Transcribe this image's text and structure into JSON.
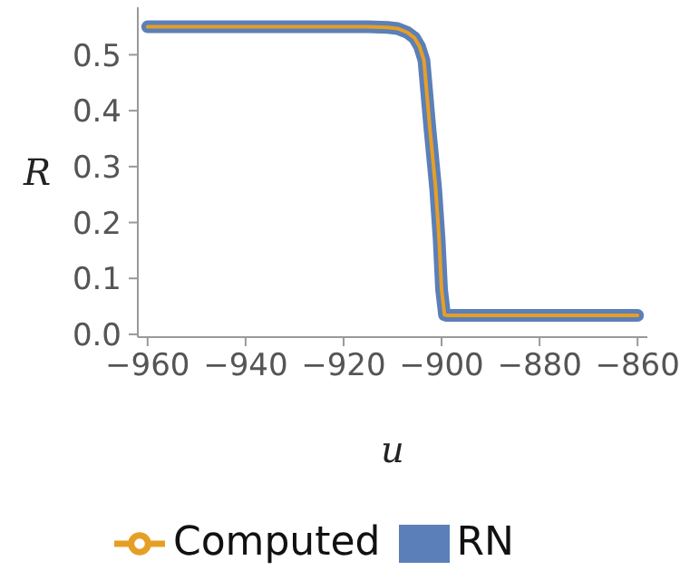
{
  "chart_data": {
    "type": "line",
    "xlabel": "u",
    "ylabel": "R",
    "x": [
      -960,
      -930,
      -915,
      -911,
      -909,
      -907,
      -905.5,
      -904.5,
      -903.6,
      -902.4,
      -901.2,
      -900.5,
      -900,
      -899.4,
      -899,
      -880,
      -860
    ],
    "series": [
      {
        "name": "RN",
        "color": "#5b7fb8",
        "values": [
          0.55,
          0.55,
          0.55,
          0.549,
          0.547,
          0.54,
          0.53,
          0.515,
          0.49,
          0.37,
          0.26,
          0.17,
          0.08,
          0.035,
          0.034,
          0.034,
          0.034
        ]
      },
      {
        "name": "Computed",
        "color": "#e69f25",
        "values": [
          0.55,
          0.55,
          0.55,
          0.549,
          0.547,
          0.54,
          0.53,
          0.515,
          0.49,
          0.37,
          0.26,
          0.17,
          0.08,
          0.035,
          0.034,
          0.034,
          0.034
        ]
      }
    ],
    "xlim": [
      -962,
      -858
    ],
    "ylim": [
      -0.005,
      0.585
    ],
    "xticks": [
      {
        "value": -960,
        "label": "−960"
      },
      {
        "value": -940,
        "label": "−940"
      },
      {
        "value": -920,
        "label": "−920"
      },
      {
        "value": -900,
        "label": "−900"
      },
      {
        "value": -880,
        "label": "−880"
      },
      {
        "value": -860,
        "label": "−860"
      }
    ],
    "yticks": [
      {
        "value": 0,
        "label": "0.0"
      },
      {
        "value": 0.1,
        "label": "0.1"
      },
      {
        "value": 0.2,
        "label": "0.2"
      },
      {
        "value": 0.3,
        "label": "0.3"
      },
      {
        "value": 0.4,
        "label": "0.4"
      },
      {
        "value": 0.5,
        "label": "0.5"
      }
    ],
    "legend": "bottom",
    "marker": "none",
    "line_style": "solid"
  }
}
